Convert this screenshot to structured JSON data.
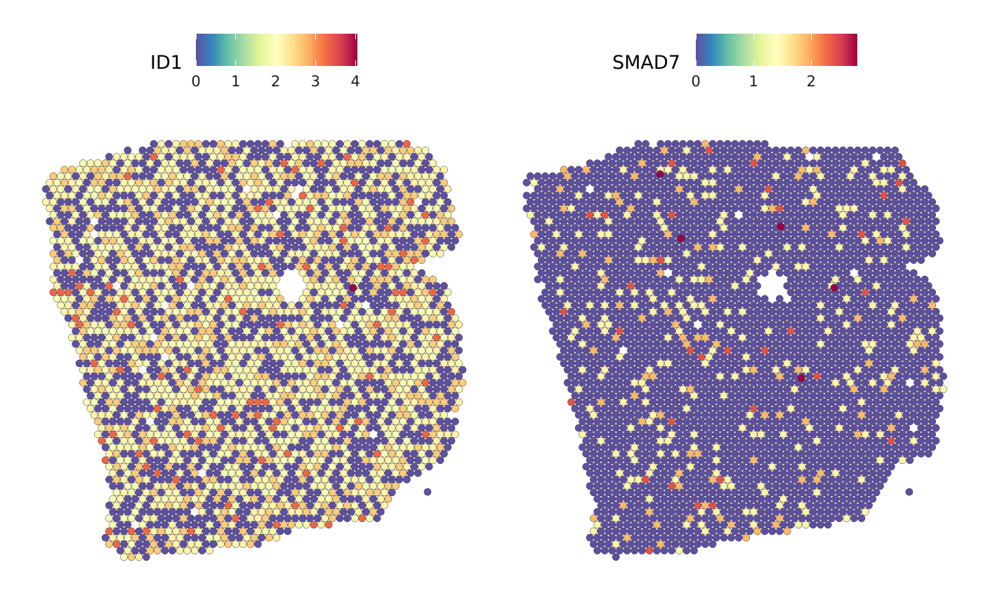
{
  "colorscale": [
    "#5E4FA2",
    "#3288BD",
    "#66C2A5",
    "#ABDDA4",
    "#E6F598",
    "#FFFFBF",
    "#FEE08B",
    "#FDAE61",
    "#F46D43",
    "#D53E4F",
    "#9E0142"
  ],
  "panels": [
    {
      "gene": "ID1",
      "ticks": [
        "0",
        "1",
        "2",
        "3",
        "4"
      ]
    },
    {
      "gene": "SMAD7",
      "ticks": [
        "0",
        "1",
        "2"
      ]
    }
  ],
  "chart_data": [
    {
      "type": "scatter",
      "title": "",
      "legend_title": "ID1",
      "color_range": [
        0,
        4.05
      ],
      "legend_ticks": [
        0,
        1,
        2,
        3,
        4
      ],
      "levels": [
        0,
        1.9,
        2.2,
        2.6,
        3.3
      ],
      "level_shares": [
        0.4,
        0.2,
        0.22,
        0.15,
        0.03
      ],
      "high_points": [
        {
          "x": 0.64,
          "y": 0.28,
          "value": 4.05
        }
      ],
      "grid": false
    },
    {
      "type": "scatter",
      "title": "",
      "legend_title": "SMAD7",
      "color_range": [
        0,
        2.8
      ],
      "legend_ticks": [
        0,
        1,
        2
      ],
      "levels": [
        0,
        1.5,
        1.9,
        2.4
      ],
      "level_shares": [
        0.85,
        0.1,
        0.035,
        0.015
      ],
      "high_points": [
        {
          "x": 0.38,
          "y": 0.08,
          "value": 2.8
        },
        {
          "x": 0.55,
          "y": 0.2,
          "value": 2.8
        },
        {
          "x": 0.69,
          "y": 0.28,
          "value": 2.8
        },
        {
          "x": 0.61,
          "y": 0.51,
          "value": 2.8
        },
        {
          "x": 0.55,
          "y": 0.33,
          "value": 2.8
        }
      ],
      "grid": false
    }
  ]
}
